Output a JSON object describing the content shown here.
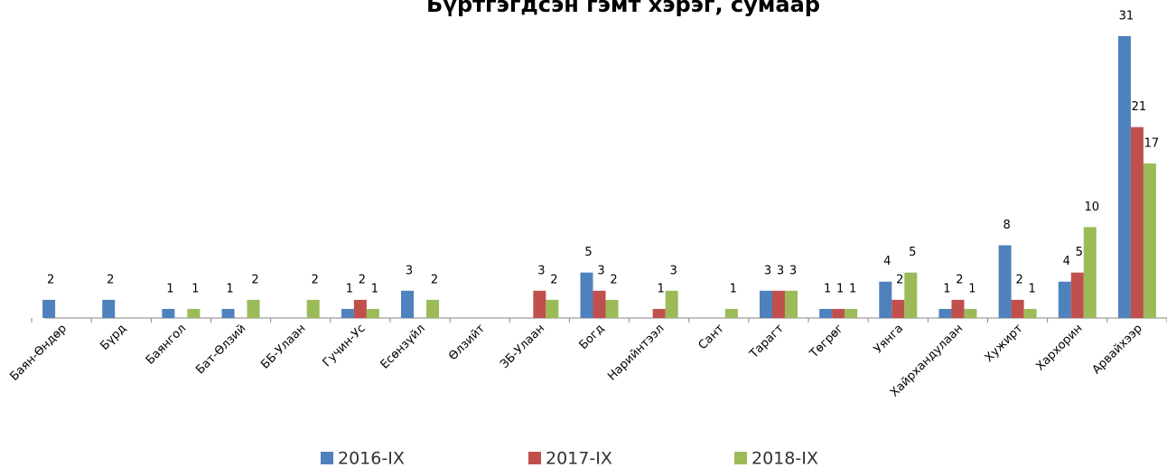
{
  "chart_data": {
    "type": "bar",
    "title": "Бүртгэгдсэн гэмт хэрэг, сумаар",
    "categories": [
      "Баян-Өндөр",
      "Бүрд",
      "Баянгол",
      "Бат-Өлзий",
      "ББ-Улаан",
      "Гучин-Ус",
      "Есөнзүйл",
      "Өлзийт",
      "ЗБ-Улаан",
      "Богд",
      "Нарийнтээл",
      "Сант",
      "Тарагт",
      "Төгрөг",
      "Уянга",
      "Хайрхандулаан",
      "Хужирт",
      "Хархорин",
      "Арвайхээр"
    ],
    "series": [
      {
        "name": "2016-IX",
        "color": "#4f81bd",
        "values": [
          2,
          2,
          1,
          1,
          null,
          1,
          3,
          null,
          null,
          5,
          null,
          null,
          3,
          1,
          4,
          1,
          8,
          4,
          31
        ]
      },
      {
        "name": "2017-IX",
        "color": "#c0504d",
        "values": [
          null,
          null,
          null,
          null,
          null,
          2,
          null,
          null,
          3,
          3,
          1,
          null,
          3,
          1,
          2,
          2,
          2,
          5,
          21
        ]
      },
      {
        "name": "2018-IX",
        "color": "#9bbb59",
        "values": [
          null,
          null,
          1,
          2,
          2,
          1,
          2,
          null,
          2,
          2,
          3,
          1,
          3,
          1,
          5,
          1,
          1,
          10,
          17
        ]
      }
    ],
    "ylim": [
      0,
      31
    ]
  }
}
